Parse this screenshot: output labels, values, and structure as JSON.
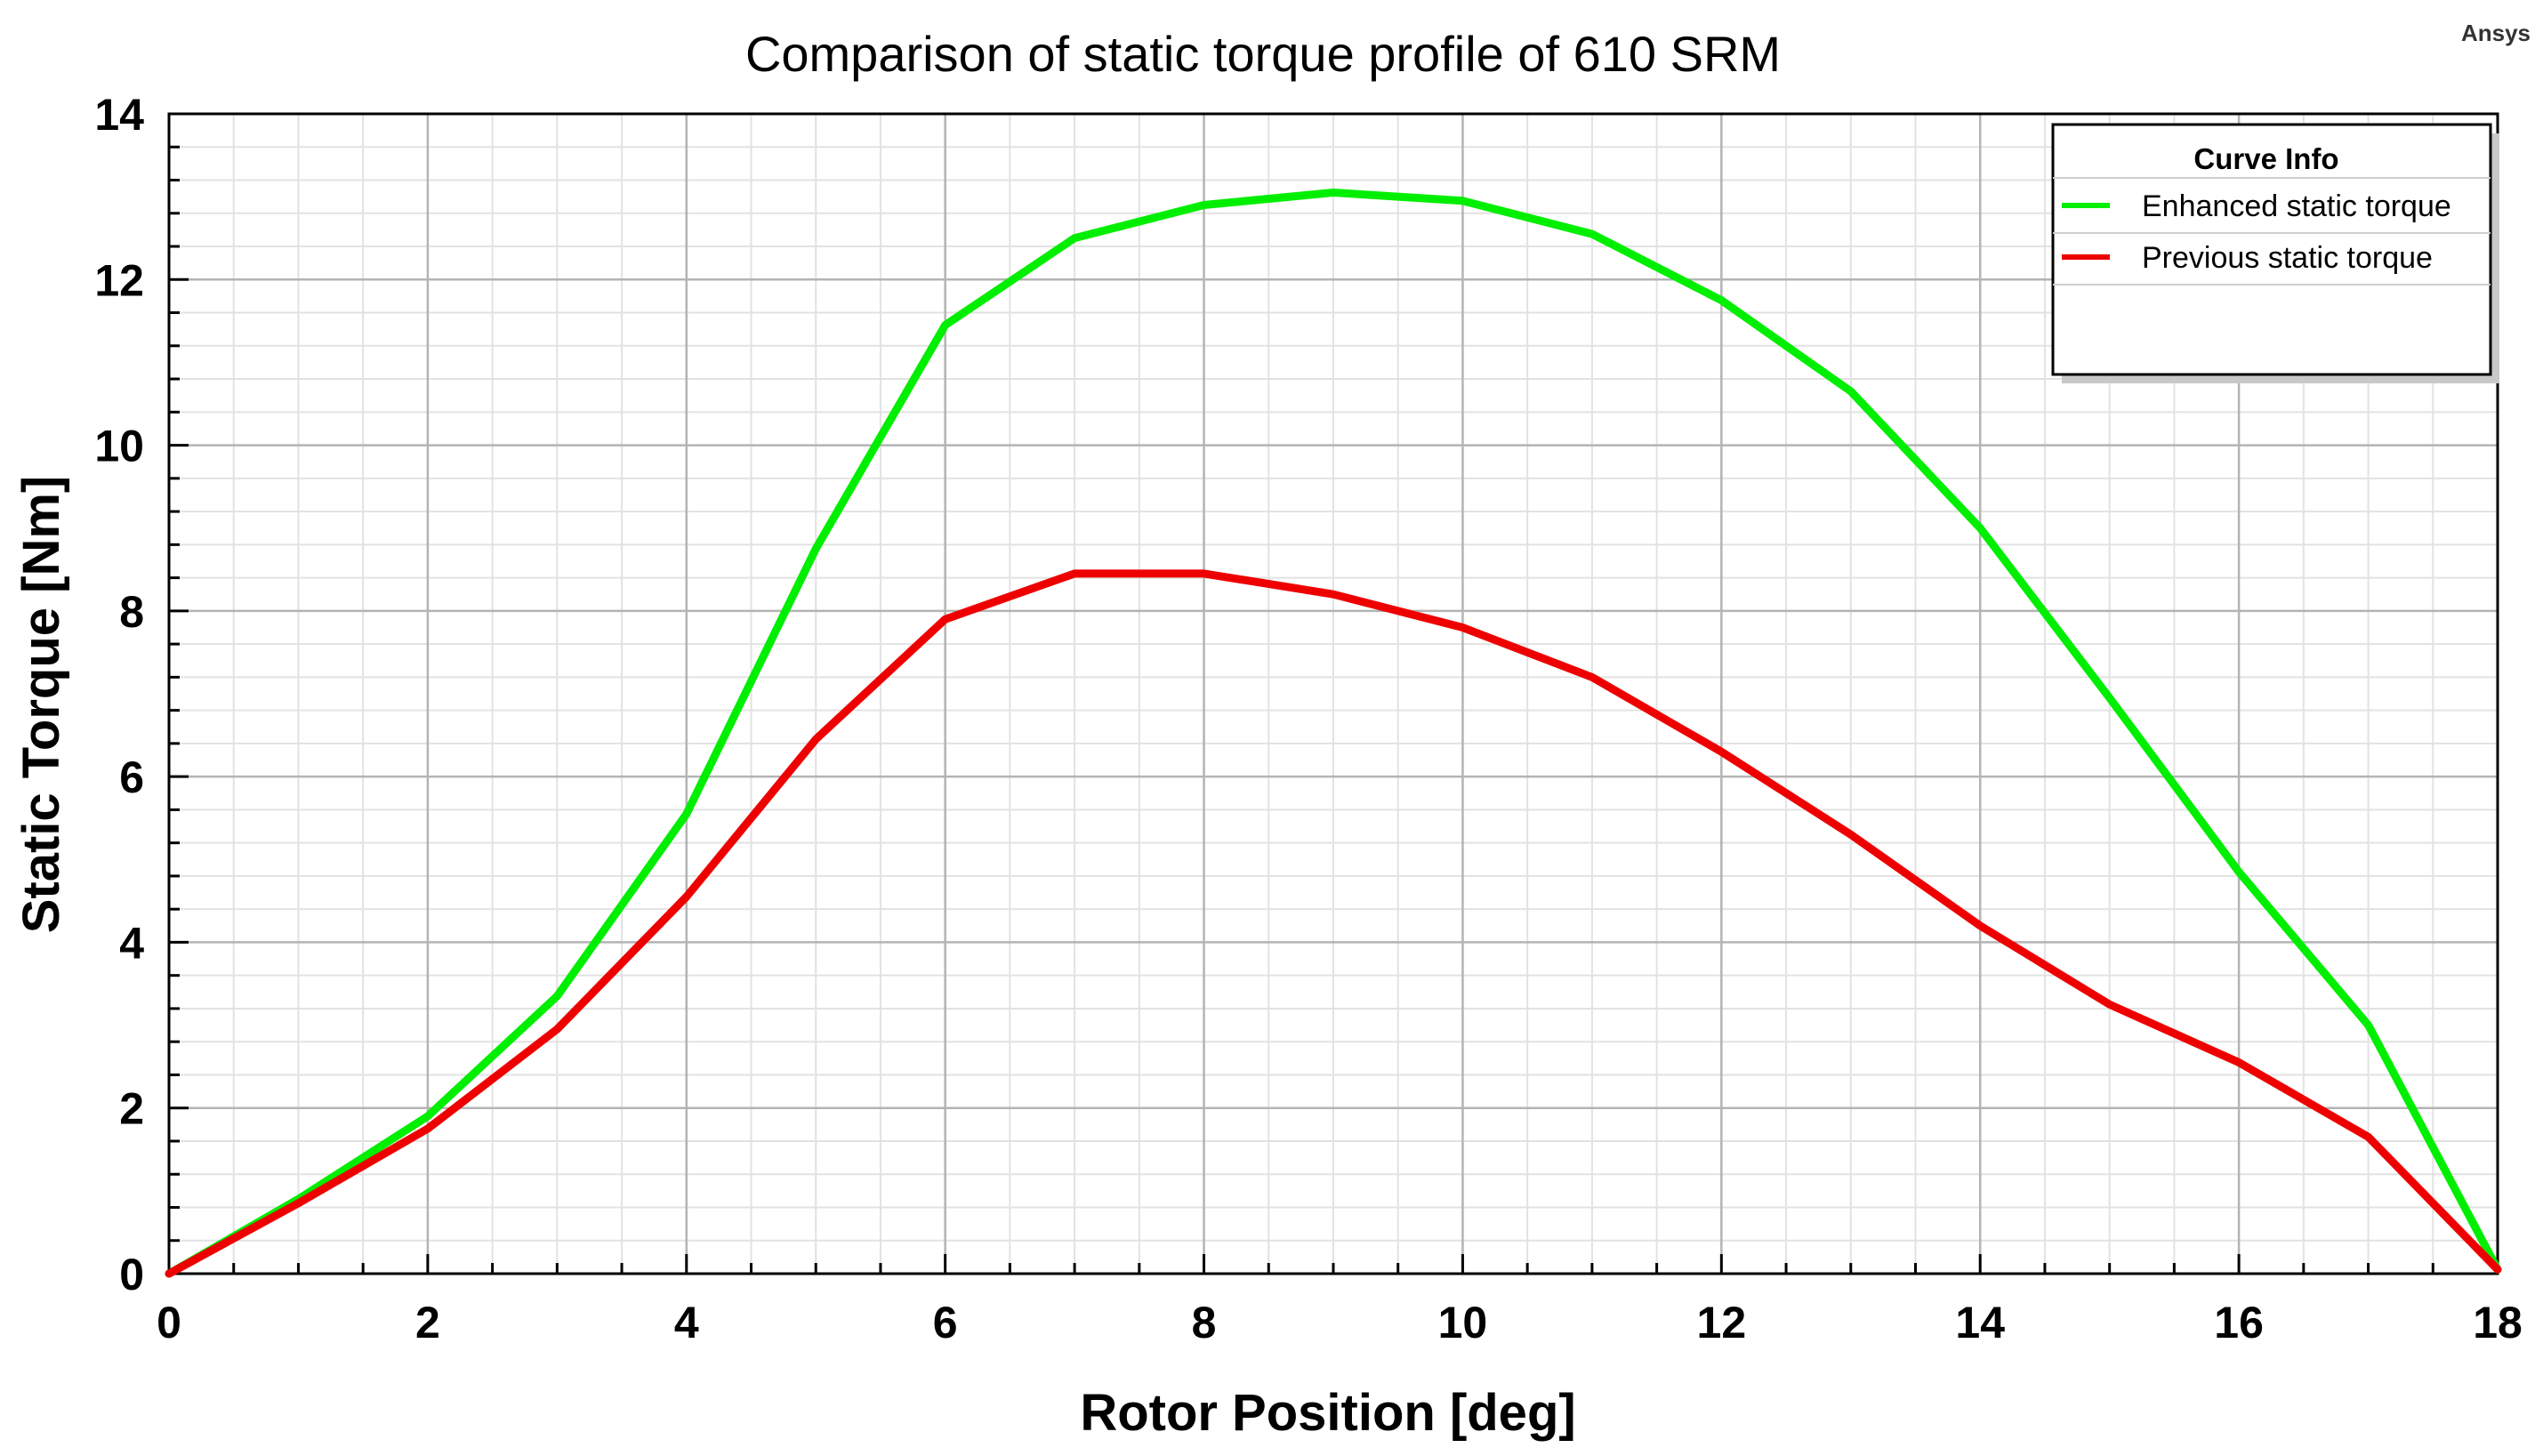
{
  "brand": "Ansys",
  "chart_data": {
    "type": "line",
    "title": "Comparison of static torque profile of 610 SRM",
    "xlabel": "Rotor Position [deg]",
    "ylabel": "Static Torque [Nm]",
    "xlim": [
      0,
      18
    ],
    "ylim": [
      0,
      14
    ],
    "xticks": [
      0,
      2,
      4,
      6,
      8,
      10,
      12,
      14,
      16,
      18
    ],
    "yticks": [
      0,
      2,
      4,
      6,
      8,
      10,
      12,
      14
    ],
    "grid": true,
    "legend": {
      "title": "Curve Info",
      "position": "top-right"
    },
    "x": [
      0,
      1,
      2,
      3,
      4,
      5,
      6,
      7,
      8,
      9,
      10,
      11,
      12,
      13,
      14,
      15,
      16,
      17,
      18
    ],
    "series": [
      {
        "name": "Enhanced static torque",
        "color": "#00ee00",
        "values": [
          0,
          0.9,
          1.9,
          3.35,
          5.55,
          8.75,
          11.45,
          12.5,
          12.9,
          13.05,
          12.95,
          12.55,
          11.75,
          10.65,
          9.0,
          6.95,
          4.85,
          3.0,
          0.05
        ]
      },
      {
        "name": "Previous static torque",
        "color": "#ee0000",
        "values": [
          0,
          0.85,
          1.75,
          2.95,
          4.55,
          6.45,
          7.9,
          8.45,
          8.45,
          8.2,
          7.8,
          7.2,
          6.3,
          5.3,
          4.2,
          3.25,
          2.55,
          1.65,
          0.05
        ]
      }
    ]
  }
}
